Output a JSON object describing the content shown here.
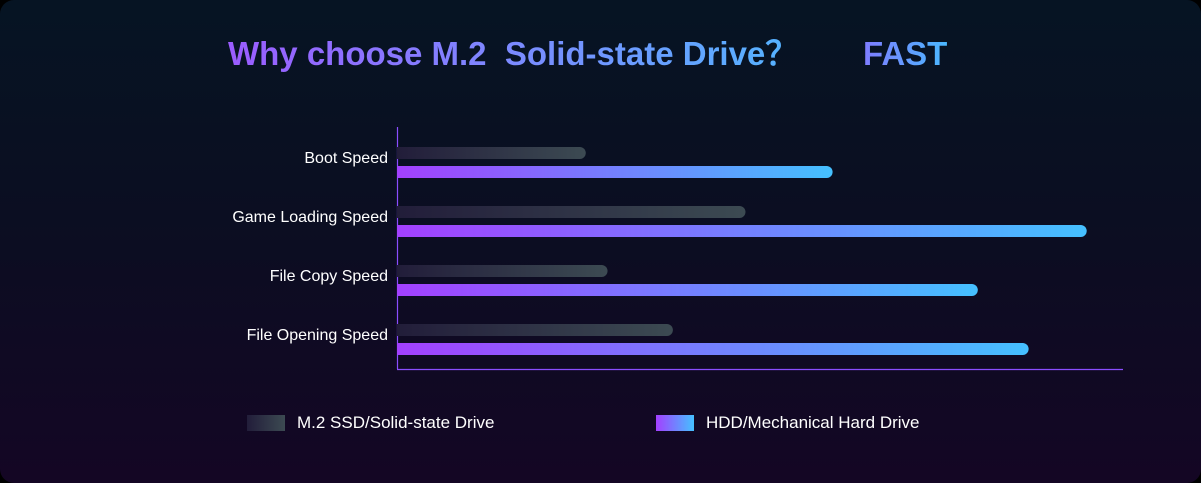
{
  "header": {
    "title": "Why choose M.2  Solid-state Drive？",
    "badge": "FAST"
  },
  "chart_data": {
    "type": "bar",
    "orientation": "horizontal",
    "categories": [
      "Boot Speed",
      "Game Loading Speed",
      "File Copy Speed",
      "File Opening Speed"
    ],
    "series": [
      {
        "name": "M.2 SSD/Solid-state Drive",
        "values": [
          26,
          48,
          29,
          38
        ],
        "color_start": "#221d3a",
        "color_end": "#3c4a52"
      },
      {
        "name": "HDD/Mechanical Hard Drive",
        "values": [
          60,
          95,
          80,
          87
        ],
        "color_start": "#a340ff",
        "color_end": "#45c0ff"
      }
    ],
    "xlim": [
      0,
      100
    ],
    "axis_color": "#8a4dff",
    "grid": false,
    "legend_position": "bottom",
    "title": "Why choose M.2  Solid-state Drive？",
    "xlabel": "",
    "ylabel": ""
  },
  "legend": {
    "items": [
      {
        "label": "M.2 SSD/Solid-state Drive"
      },
      {
        "label": "HDD/Mechanical Hard Drive"
      }
    ]
  }
}
